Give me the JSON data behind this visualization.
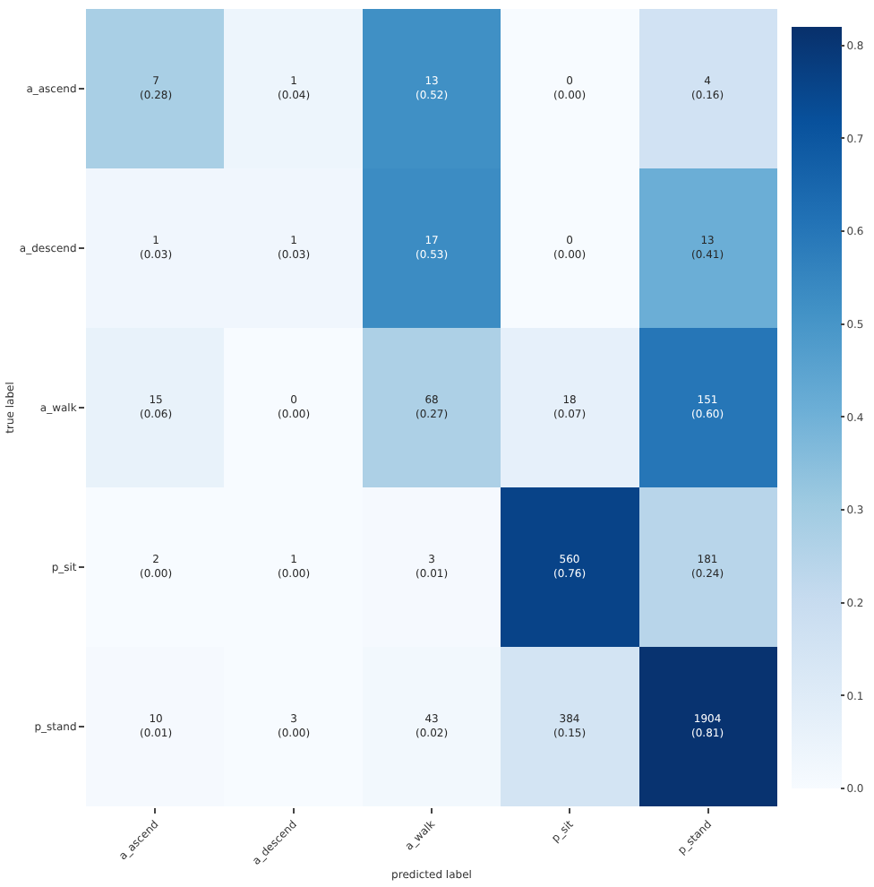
{
  "chart_data": {
    "type": "heatmap",
    "xlabel": "predicted label",
    "ylabel": "true label",
    "categories": [
      "a_ascend",
      "a_descend",
      "a_walk",
      "p_sit",
      "p_stand"
    ],
    "y_categories": [
      "a_ascend",
      "a_descend",
      "a_walk",
      "p_sit",
      "p_stand"
    ],
    "cells": [
      [
        0.28,
        0.04,
        0.52,
        0.0,
        0.16
      ],
      [
        0.03,
        0.03,
        0.53,
        0.0,
        0.41
      ],
      [
        0.06,
        0.0,
        0.27,
        0.07,
        0.6
      ],
      [
        0.0,
        0.0,
        0.01,
        0.76,
        0.24
      ],
      [
        0.01,
        0.0,
        0.02,
        0.15,
        0.81
      ]
    ],
    "cell_labels": [
      [
        "7\n(0.28)",
        "1\n(0.04)",
        "13\n(0.52)",
        "0\n(0.00)",
        "4\n(0.16)"
      ],
      [
        "1\n(0.03)",
        "1\n(0.03)",
        "17\n(0.53)",
        "0\n(0.00)",
        "13\n(0.41)"
      ],
      [
        "15\n(0.06)",
        "0\n(0.00)",
        "68\n(0.27)",
        "18\n(0.07)",
        "151\n(0.60)"
      ],
      [
        "2\n(0.00)",
        "1\n(0.00)",
        "3\n(0.01)",
        "560\n(0.76)",
        "181\n(0.24)"
      ],
      [
        "10\n(0.01)",
        "3\n(0.00)",
        "43\n(0.02)",
        "384\n(0.15)",
        "1904\n(0.81)"
      ]
    ],
    "clim": [
      0,
      0.82
    ],
    "cticks": [
      {
        "value": 0,
        "label": "0.0"
      },
      0.1,
      0.2,
      0.3,
      0.4,
      0.5,
      0.6,
      0.7,
      0.8
    ]
  }
}
